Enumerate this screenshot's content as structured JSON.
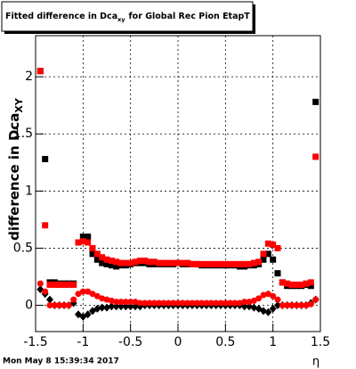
{
  "chart_data": {
    "type": "scatter",
    "title": "Fitted difference in Dca",
    "title_subscript": "xy",
    "title_rest": "for Global Rec Pion EtapT",
    "y_label": "difference in Dca",
    "y_label_subscript": "XY",
    "x_label": "η",
    "footer": "Mon May  8 15:39:34 2017",
    "xlim": [
      -1.5,
      1.5
    ],
    "xticks": [
      -1.5,
      -1,
      -0.5,
      0,
      0.5,
      1,
      1.5
    ],
    "ylim": [
      -0.23,
      2.36
    ],
    "yticks": [
      0,
      0.5,
      1,
      1.5,
      2
    ],
    "grid": true,
    "x": [
      -1.45,
      -1.4,
      -1.35,
      -1.3,
      -1.25,
      -1.2,
      -1.15,
      -1.1,
      -1.05,
      -1,
      -0.95,
      -0.9,
      -0.85,
      -0.8,
      -0.75,
      -0.7,
      -0.65,
      -0.6,
      -0.55,
      -0.5,
      -0.45,
      -0.4,
      -0.35,
      -0.3,
      -0.25,
      -0.2,
      -0.15,
      -0.1,
      -0.05,
      0,
      0.05,
      0.1,
      0.15,
      0.2,
      0.25,
      0.3,
      0.35,
      0.4,
      0.45,
      0.5,
      0.55,
      0.6,
      0.65,
      0.7,
      0.75,
      0.8,
      0.85,
      0.9,
      0.95,
      1,
      1.05,
      1.1,
      1.15,
      1.2,
      1.25,
      1.3,
      1.35,
      1.4,
      1.45
    ],
    "series": [
      {
        "color": "#000000",
        "marker": "square",
        "values": [
          2.05,
          1.28,
          0.2,
          0.2,
          0.19,
          0.19,
          0.19,
          0.19,
          0.55,
          0.6,
          0.6,
          0.45,
          0.4,
          0.37,
          0.36,
          0.35,
          0.34,
          0.35,
          0.35,
          0.36,
          0.37,
          0.37,
          0.37,
          0.36,
          0.36,
          0.36,
          0.36,
          0.36,
          0.36,
          0.37,
          0.36,
          0.36,
          0.36,
          0.36,
          0.35,
          0.35,
          0.35,
          0.35,
          0.35,
          0.35,
          0.35,
          0.35,
          0.34,
          0.34,
          0.35,
          0.35,
          0.36,
          0.4,
          0.45,
          0.4,
          0.28,
          0.2,
          0.17,
          0.17,
          0.17,
          0.17,
          0.18,
          0.17,
          1.78
        ]
      },
      {
        "color": "#ff0000",
        "marker": "square",
        "values": [
          2.05,
          0.7,
          0.18,
          0.18,
          0.18,
          0.18,
          0.18,
          0.18,
          0.55,
          0.56,
          0.55,
          0.5,
          0.45,
          0.42,
          0.4,
          0.39,
          0.38,
          0.37,
          0.37,
          0.37,
          0.38,
          0.39,
          0.39,
          0.38,
          0.38,
          0.37,
          0.37,
          0.37,
          0.37,
          0.37,
          0.37,
          0.37,
          0.36,
          0.36,
          0.36,
          0.36,
          0.36,
          0.36,
          0.36,
          0.36,
          0.36,
          0.36,
          0.36,
          0.36,
          0.36,
          0.37,
          0.38,
          0.45,
          0.54,
          0.53,
          0.5,
          0.2,
          0.19,
          0.18,
          0.18,
          0.18,
          0.19,
          0.2,
          1.3
        ]
      },
      {
        "color": "#000000",
        "marker": "diamond",
        "values": [
          0.14,
          0.1,
          0.05,
          0,
          0,
          0,
          0,
          0.02,
          -0.08,
          -0.1,
          -0.08,
          -0.05,
          -0.03,
          -0.02,
          -0.02,
          -0.01,
          -0.01,
          -0.01,
          -0.01,
          -0.01,
          -0.01,
          -0.01,
          0,
          0,
          0,
          0,
          0,
          0,
          0,
          0,
          0,
          0,
          0,
          0,
          0,
          0,
          0,
          0,
          0,
          0,
          0,
          0,
          0,
          -0.01,
          -0.01,
          -0.02,
          -0.03,
          -0.05,
          -0.06,
          -0.03,
          0,
          0,
          0,
          0,
          0,
          0,
          0,
          0.02,
          0.05
        ]
      },
      {
        "color": "#ff0000",
        "marker": "circle",
        "values": [
          0.19,
          0.12,
          0,
          0,
          0,
          0,
          0,
          0.05,
          0.1,
          0.12,
          0.12,
          0.1,
          0.08,
          0.06,
          0.05,
          0.04,
          0.03,
          0.03,
          0.03,
          0.03,
          0.03,
          0.02,
          0.02,
          0.02,
          0.02,
          0.02,
          0.02,
          0.02,
          0.02,
          0.02,
          0.02,
          0.02,
          0.02,
          0.02,
          0.02,
          0.02,
          0.02,
          0.02,
          0.02,
          0.02,
          0.02,
          0.02,
          0.02,
          0.03,
          0.03,
          0.04,
          0.06,
          0.09,
          0.1,
          0.08,
          0.05,
          0,
          0,
          0,
          0,
          0,
          0,
          0.01,
          0.05
        ]
      }
    ]
  }
}
